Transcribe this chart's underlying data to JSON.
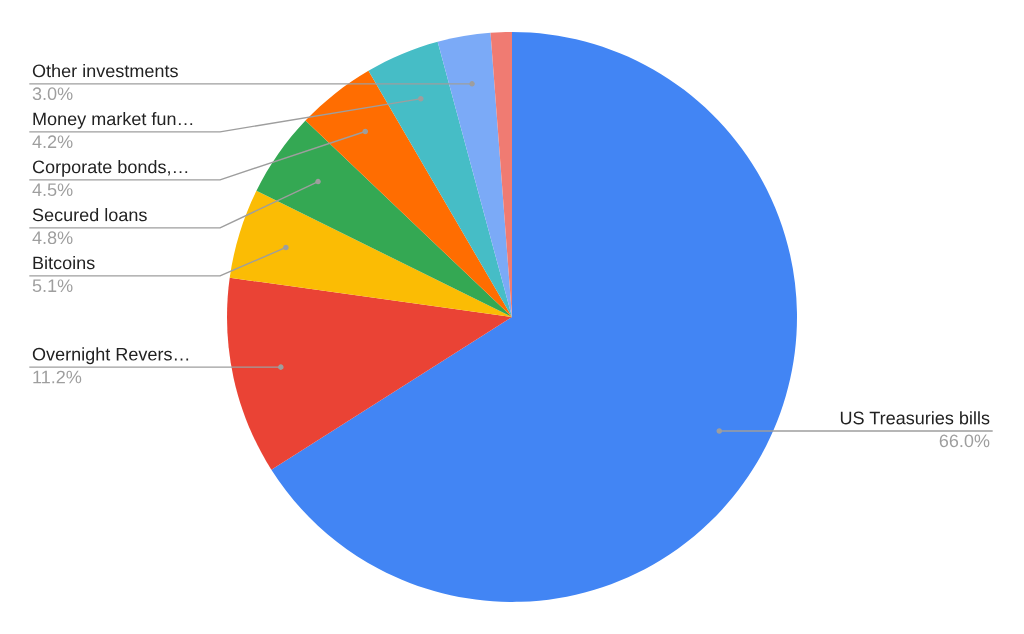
{
  "chart_data": {
    "type": "pie",
    "categories": [
      "US Treasuries bills",
      "Overnight Revers…",
      "Bitcoins",
      "Secured loans",
      "Corporate bonds,…",
      "Money market fun…",
      "Other investments",
      null
    ],
    "values": [
      66.0,
      11.2,
      5.1,
      4.8,
      4.5,
      4.2,
      3.0,
      1.2
    ],
    "colors": [
      "#4285f4",
      "#ea4335",
      "#fbbc04",
      "#34a853",
      "#ff6d01",
      "#46bdc6",
      "#7baaf7",
      "#f07b72"
    ],
    "value_labels": [
      "66.0%",
      "11.2%",
      "5.1%",
      "4.8%",
      "4.5%",
      "4.2%",
      "3.0%",
      null
    ],
    "legend": false
  }
}
